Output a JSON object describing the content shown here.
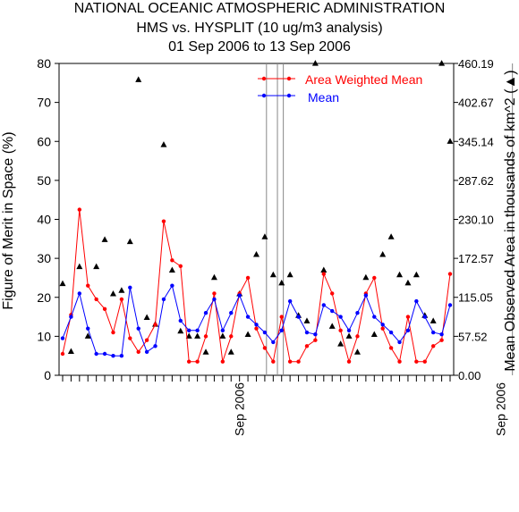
{
  "chart_data": {
    "type": "line",
    "title_lines": [
      "NATIONAL OCEANIC ATMOSPHERIC ADMINISTRATION",
      "HMS vs. HYSPLIT (10 ug/m3 analysis)",
      "01 Sep 2006 to 13 Sep 2006"
    ],
    "ylabel_left": "Figure of Merit in Space (%)",
    "ylabel_right": "Mean Observed Area in thousands of km^2 (▲)",
    "ylim_left": [
      0,
      80
    ],
    "yticks_left": [
      "0",
      "10",
      "20",
      "30",
      "40",
      "50",
      "60",
      "70",
      "80"
    ],
    "ylim_right": [
      0,
      460.19
    ],
    "yticks_right": [
      "0.00",
      "57.52",
      "115.05",
      "172.57",
      "230.10",
      "287.62",
      "345.14",
      "402.67",
      "460.19"
    ],
    "x_labels": [
      "Sep 2006",
      "Sep 2006"
    ],
    "x_label_index": [
      21,
      52
    ],
    "separator_index": [
      24.2,
      25.5,
      26.2,
      53.4
    ],
    "series": [
      {
        "name": "Area Weighted Mean",
        "color": "#ff0000",
        "values": [
          5.5,
          15.5,
          42.5,
          23,
          19.5,
          17,
          11,
          19.5,
          9.5,
          6,
          9,
          13,
          39.5,
          29.5,
          28,
          3.5,
          3.5,
          10,
          21,
          3.5,
          10,
          21,
          25,
          12,
          7,
          3.5,
          15,
          3.5,
          3.5,
          7.5,
          9,
          26,
          21,
          11.5,
          3.5,
          10,
          21,
          25,
          12,
          7,
          3.5,
          15,
          3.5,
          3.5,
          7.5,
          9,
          26
        ]
      },
      {
        "name": "Mean",
        "color": "#0000ff",
        "values": [
          9.5,
          15,
          21,
          12,
          5.5,
          5.5,
          5,
          5,
          22.5,
          12,
          6,
          7.5,
          19.5,
          23,
          14,
          11.5,
          11.5,
          16,
          19.5,
          11.5,
          16,
          20.5,
          15,
          13,
          11,
          8.5,
          11.5,
          19,
          15,
          11,
          10.5,
          18,
          16.5,
          15,
          11.5,
          16,
          20.5,
          15,
          13,
          11,
          8.5,
          11.5,
          19,
          15,
          11,
          10.5,
          18
        ]
      }
    ],
    "area_triangles": {
      "name": "Mean Observed Area",
      "color": "#000000",
      "units": "thousands of km^2",
      "values": [
        135,
        35,
        160,
        57.5,
        160,
        200,
        120,
        125,
        197,
        436,
        85,
        75,
        340,
        155,
        65,
        57.5,
        57.5,
        34,
        144,
        57.5,
        34,
        120,
        60,
        178,
        204,
        148,
        136,
        148,
        88,
        80,
        460,
        155,
        72,
        46,
        57.5,
        34,
        144,
        60,
        178,
        204,
        148,
        136,
        148,
        88,
        80,
        460,
        345
      ]
    },
    "grid": false
  }
}
